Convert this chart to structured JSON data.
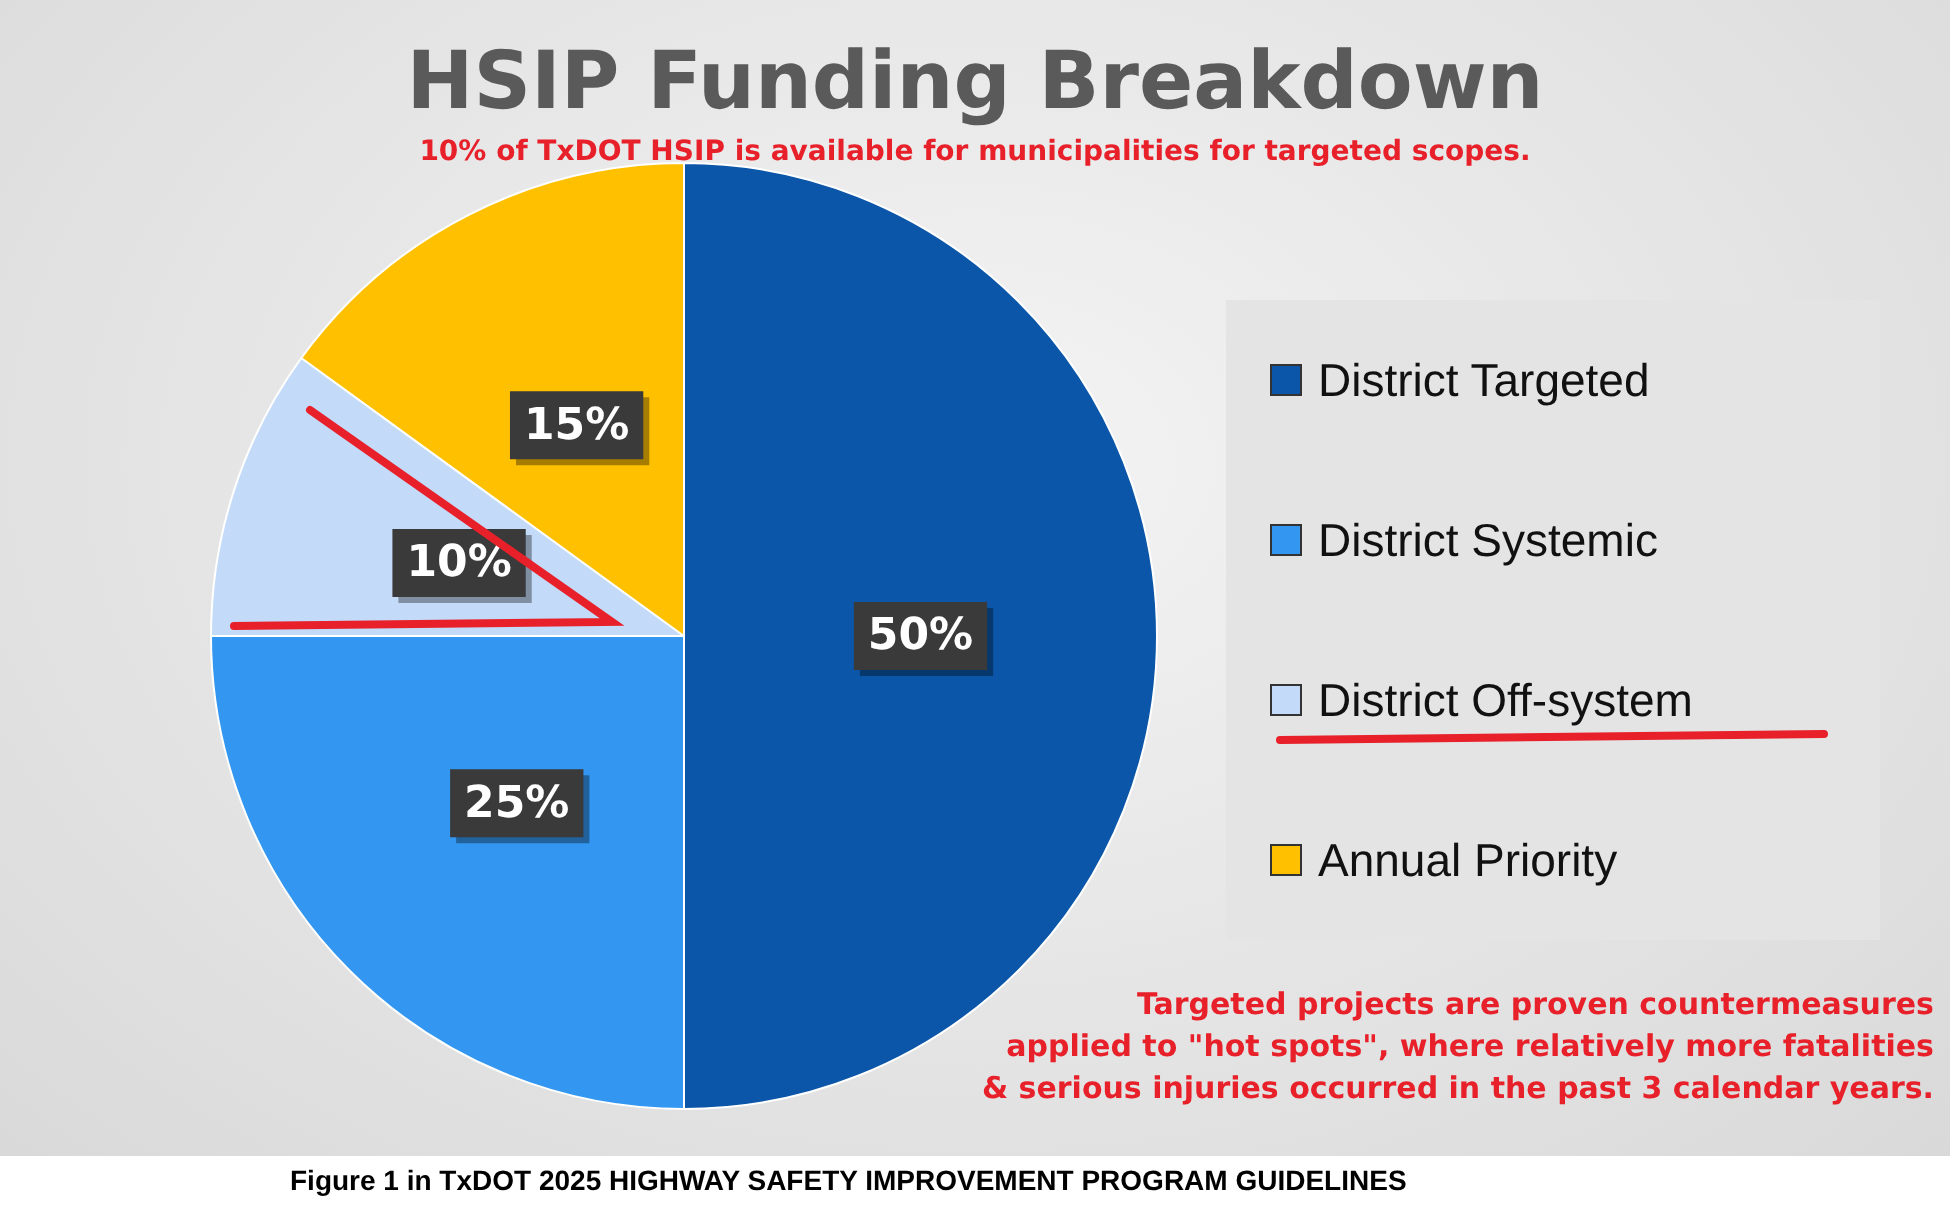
{
  "chart_data": {
    "type": "pie",
    "title": "HSIP Funding Breakdown",
    "subtitle": "10% of TxDOT HSIP is available for municipalities for targeted scopes.",
    "categories": [
      "District Targeted",
      "District Systemic",
      "District Off-system",
      "Annual Priority"
    ],
    "values": [
      50,
      25,
      10,
      15
    ],
    "colors": [
      "#0b56a8",
      "#3397f2",
      "#c3daf8",
      "#ffc000"
    ],
    "value_labels": [
      "50%",
      "25%",
      "10%",
      "15%"
    ],
    "legend": "right",
    "annotations": [
      "Targeted projects are proven countermeasures\napplied to \"hot spots\", where relatively more fatalities\n& serious injuries occurred in the past 3 calendar years.",
      "Figure 1 in TxDOT 2025 HIGHWAY SAFETY IMPROVEMENT PROGRAM GUIDELINES"
    ]
  }
}
